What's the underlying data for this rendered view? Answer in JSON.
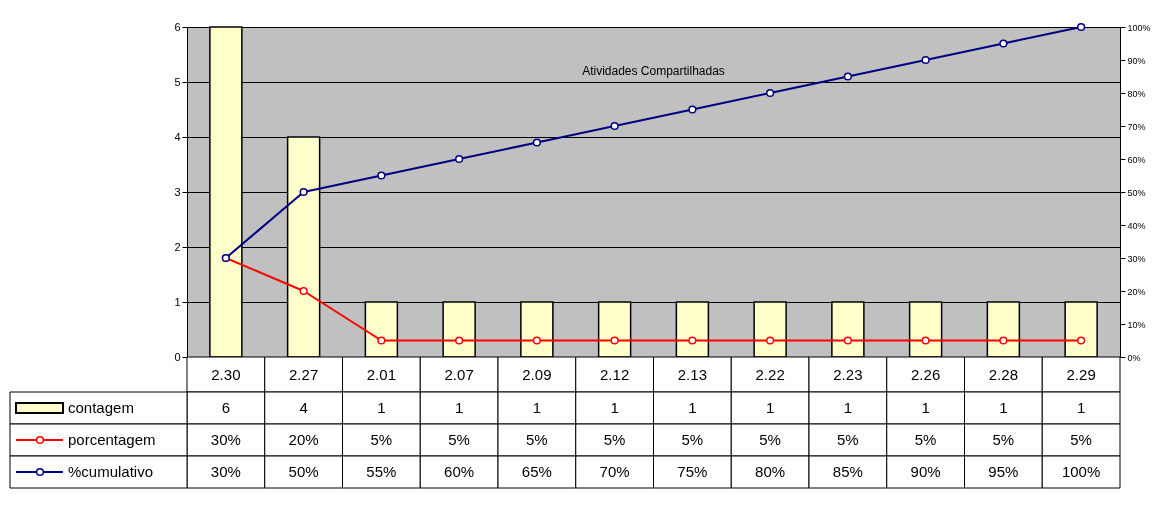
{
  "chart_data": {
    "type": "bar",
    "title": "Atividades Compartilhadas",
    "categories": [
      "2.30",
      "2.27",
      "2.01",
      "2.07",
      "2.09",
      "2.12",
      "2.13",
      "2.22",
      "2.23",
      "2.26",
      "2.28",
      "2.29"
    ],
    "series": [
      {
        "name": "contagem",
        "color": "#ffffcc",
        "values": [
          6,
          4,
          1,
          1,
          1,
          1,
          1,
          1,
          1,
          1,
          1,
          1
        ],
        "value_labels": [
          "6",
          "4",
          "1",
          "1",
          "1",
          "1",
          "1",
          "1",
          "1",
          "1",
          "1",
          "1"
        ]
      },
      {
        "name": "porcentagem",
        "type": "line",
        "axis": "y2",
        "color": "#ff0000",
        "values": [
          30,
          20,
          5,
          5,
          5,
          5,
          5,
          5,
          5,
          5,
          5,
          5
        ],
        "value_labels": [
          "30%",
          "20%",
          "5%",
          "5%",
          "5%",
          "5%",
          "5%",
          "5%",
          "5%",
          "5%",
          "5%",
          "5%"
        ]
      },
      {
        "name": "%cumulativo",
        "type": "line",
        "axis": "y2",
        "color": "#000080",
        "values": [
          30,
          50,
          55,
          60,
          65,
          70,
          75,
          80,
          85,
          90,
          95,
          100
        ],
        "value_labels": [
          "30%",
          "50%",
          "55%",
          "60%",
          "65%",
          "70%",
          "75%",
          "80%",
          "85%",
          "90%",
          "95%",
          "100%"
        ]
      }
    ],
    "ylim": [
      0,
      6
    ],
    "yticks": [
      0,
      1,
      2,
      3,
      4,
      5,
      6
    ],
    "y2lim": [
      0,
      100
    ],
    "y2ticks": [
      {
        "value": 0,
        "label": "0%"
      },
      {
        "value": 10,
        "label": "10%"
      },
      {
        "value": 20,
        "label": "20%"
      },
      {
        "value": 30,
        "label": "30%"
      },
      {
        "value": 40,
        "label": "40%"
      },
      {
        "value": 50,
        "label": "50%"
      },
      {
        "value": 60,
        "label": "60%"
      },
      {
        "value": 70,
        "label": "70%"
      },
      {
        "value": 80,
        "label": "80%"
      },
      {
        "value": 90,
        "label": "90%"
      },
      {
        "value": 100,
        "label": "100%"
      }
    ],
    "grid": "y",
    "legend": "bottom left",
    "marker": "circle"
  }
}
